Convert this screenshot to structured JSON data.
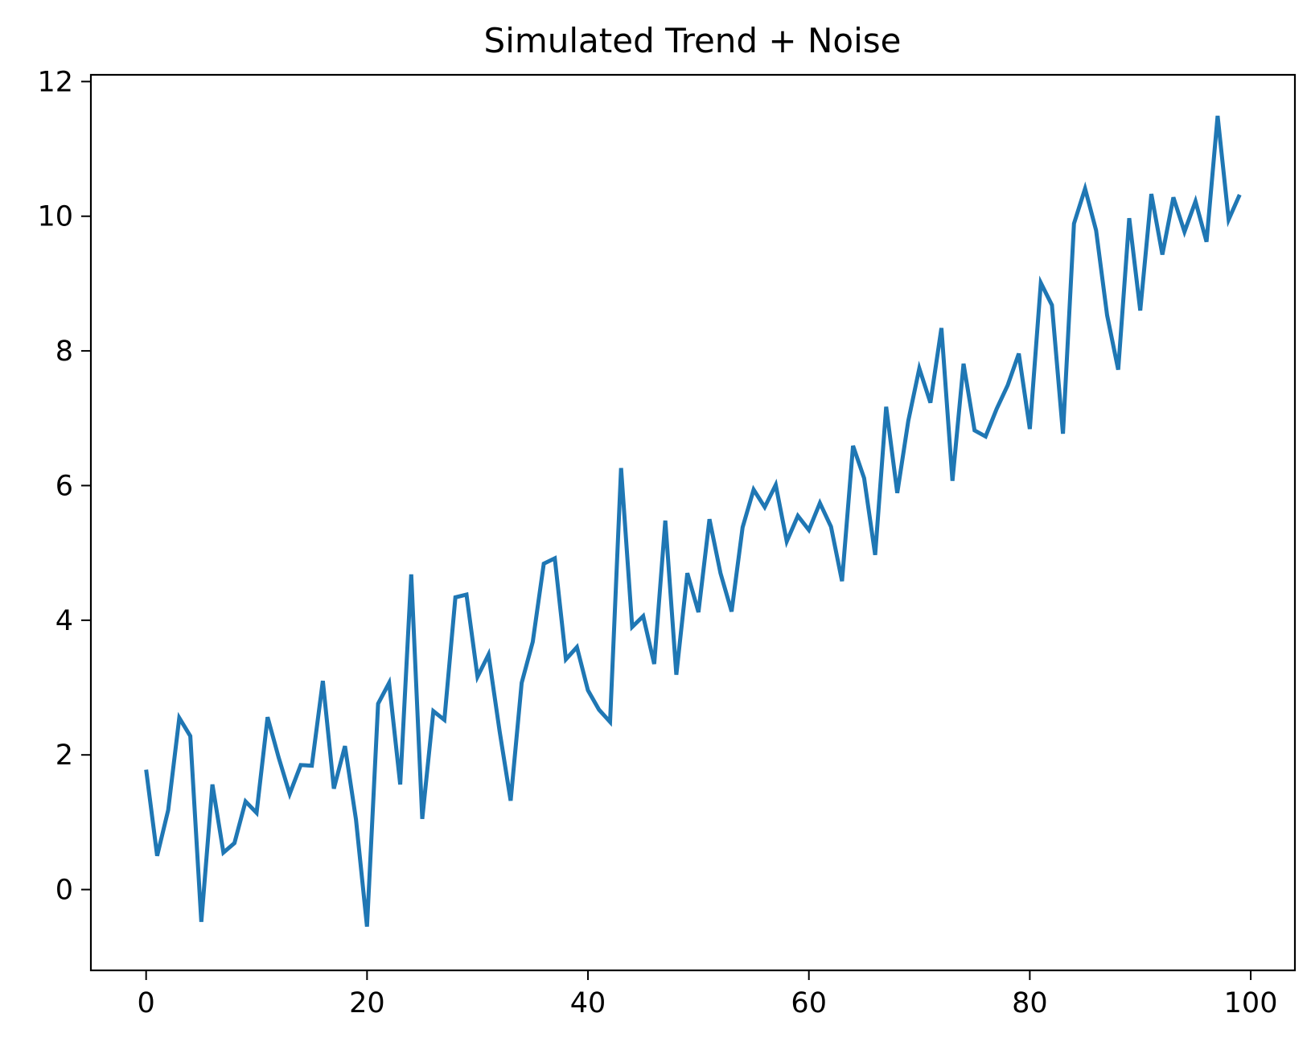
{
  "chart_data": {
    "type": "line",
    "title": "Simulated Trend + Noise",
    "xlabel": "",
    "ylabel": "",
    "xlim": [
      -5,
      104
    ],
    "ylim": [
      -1.2,
      12.1
    ],
    "x_ticks": [
      0,
      20,
      40,
      60,
      80,
      100
    ],
    "y_ticks": [
      0,
      2,
      4,
      6,
      8,
      10,
      12
    ],
    "grid": false,
    "series": [
      {
        "color": "#1f77b4",
        "x": [
          0,
          1,
          2,
          3,
          4,
          5,
          6,
          7,
          8,
          9,
          10,
          11,
          12,
          13,
          14,
          15,
          16,
          17,
          18,
          19,
          20,
          21,
          22,
          23,
          24,
          25,
          26,
          27,
          28,
          29,
          30,
          31,
          32,
          33,
          34,
          35,
          36,
          37,
          38,
          39,
          40,
          41,
          42,
          43,
          44,
          45,
          46,
          47,
          48,
          49,
          50,
          51,
          52,
          53,
          54,
          55,
          56,
          57,
          58,
          59,
          60,
          61,
          62,
          63,
          64,
          65,
          66,
          67,
          68,
          69,
          70,
          71,
          72,
          73,
          74,
          75,
          76,
          77,
          78,
          79,
          80,
          81,
          82,
          83,
          84,
          85,
          86,
          87,
          88,
          89,
          90,
          91,
          92,
          93,
          94,
          95,
          96,
          97,
          98,
          99
        ],
        "values": [
          1.78,
          0.5,
          1.18,
          2.55,
          2.28,
          -0.48,
          1.56,
          0.55,
          0.69,
          1.31,
          1.14,
          2.56,
          1.96,
          1.42,
          1.85,
          1.84,
          3.1,
          1.5,
          2.13,
          1.04,
          -0.55,
          2.76,
          3.07,
          1.56,
          4.68,
          1.05,
          2.65,
          2.52,
          4.34,
          4.38,
          3.16,
          3.49,
          2.35,
          1.32,
          3.07,
          3.68,
          4.84,
          4.92,
          3.42,
          3.6,
          2.96,
          2.67,
          2.49,
          6.26,
          3.9,
          4.06,
          3.35,
          5.48,
          3.19,
          4.7,
          4.12,
          5.5,
          4.7,
          4.13,
          5.38,
          5.94,
          5.68,
          6.01,
          5.17,
          5.55,
          5.34,
          5.74,
          5.39,
          4.58,
          6.59,
          6.11,
          4.97,
          7.17,
          5.89,
          6.96,
          7.74,
          7.23,
          8.34,
          6.07,
          7.81,
          6.82,
          6.73,
          7.14,
          7.49,
          7.96,
          6.84,
          9.01,
          8.68,
          6.77,
          9.89,
          10.41,
          9.79,
          8.53,
          7.72,
          9.97,
          8.6,
          10.33,
          9.43,
          10.28,
          9.77,
          10.22,
          9.62,
          11.49,
          9.95,
          10.32
        ]
      }
    ]
  }
}
